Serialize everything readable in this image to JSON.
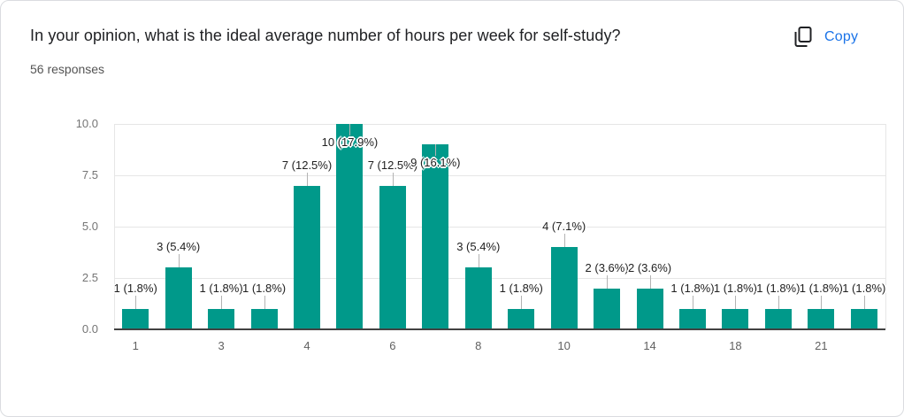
{
  "header": {
    "title": "In your opinion, what is the ideal average number of hours per week for self-study?",
    "responses_label": "56 responses",
    "copy": {
      "label": "Copy",
      "icon": "content-copy-icon"
    }
  },
  "colors": {
    "bar": "#00998a",
    "link_blue": "#1a73e8",
    "axis_text": "#757575",
    "x_axis_text": "#616161",
    "annotation_text": "#212121",
    "gridline": "#e6e6e6",
    "baseline": "#424242",
    "stem": "#b3b3b3",
    "card_border": "#dadce0",
    "title_text": "#202124"
  },
  "chart_data": {
    "type": "bar",
    "title": "In your opinion, what is the ideal average number of hours per week for self-study?",
    "subtitle": "56 responses",
    "categories": [
      "1",
      "",
      "3",
      "",
      "4",
      "",
      "6",
      "",
      "8",
      "",
      "10",
      "",
      "14",
      "",
      "18",
      "",
      "21",
      ""
    ],
    "values": [
      1,
      3,
      1,
      1,
      7,
      10,
      7,
      9,
      3,
      1,
      4,
      2,
      2,
      1,
      1,
      1,
      1,
      1
    ],
    "annotations": [
      "1 (1.8%)",
      "3 (5.4%)",
      "1 (1.8%)",
      "1 (1.8%)",
      "7 (12.5%)",
      "10 (17.9%)",
      "7 (12.5%)",
      "9 (16.1%)",
      "3 (5.4%)",
      "1 (1.8%)",
      "4 (7.1%)",
      "2 (3.6%)",
      "2 (3.6%)",
      "1 (1.8%)",
      "1 (1.8%)",
      "1 (1.8%)",
      "1 (1.8%)",
      "1 (1.8%)"
    ],
    "inside_label_indices": [
      5,
      7
    ],
    "y_ticks": [
      "0.0",
      "2.5",
      "5.0",
      "7.5",
      "10.0"
    ],
    "ylim": [
      0,
      10
    ],
    "total_responses": 56,
    "grid": true,
    "legend": "none"
  }
}
